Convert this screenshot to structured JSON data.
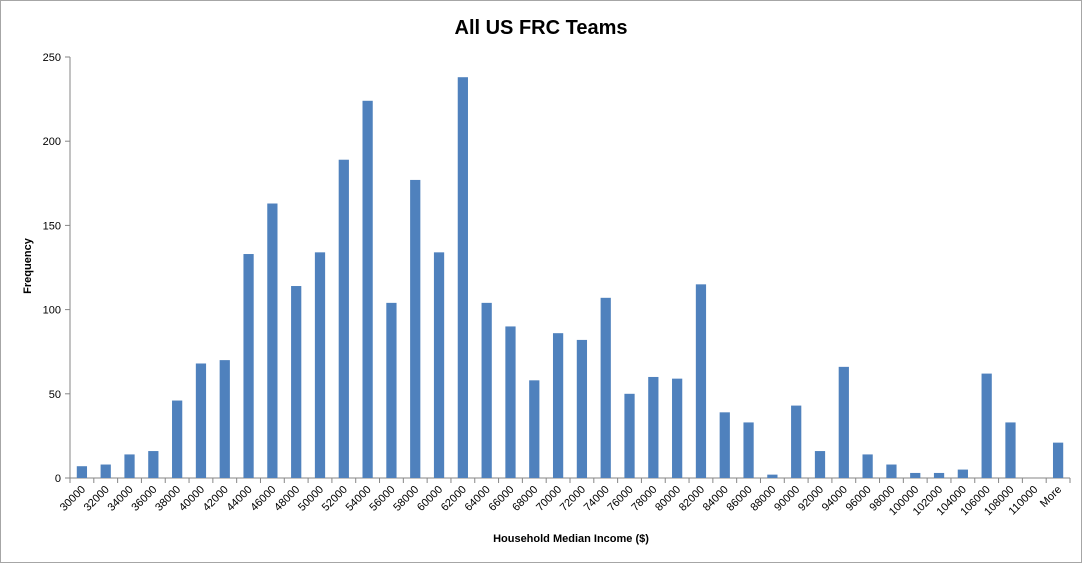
{
  "chart_data": {
    "type": "bar",
    "title": "All US FRC Teams",
    "xlabel": "Household Median Income ($)",
    "ylabel": "Frequency",
    "ylim": [
      0,
      250
    ],
    "yticks": [
      0,
      50,
      100,
      150,
      200,
      250
    ],
    "grid": false,
    "legend": "none",
    "bar_color": "#4f81bd",
    "categories": [
      "30000",
      "32000",
      "34000",
      "36000",
      "38000",
      "40000",
      "42000",
      "44000",
      "46000",
      "48000",
      "50000",
      "52000",
      "54000",
      "56000",
      "58000",
      "60000",
      "62000",
      "64000",
      "66000",
      "68000",
      "70000",
      "72000",
      "74000",
      "76000",
      "78000",
      "80000",
      "82000",
      "84000",
      "86000",
      "88000",
      "90000",
      "92000",
      "94000",
      "96000",
      "98000",
      "100000",
      "102000",
      "104000",
      "106000",
      "108000",
      "110000",
      "More"
    ],
    "values": [
      7,
      8,
      14,
      16,
      46,
      68,
      70,
      133,
      163,
      114,
      134,
      189,
      224,
      104,
      177,
      134,
      238,
      104,
      90,
      58,
      86,
      82,
      107,
      50,
      60,
      59,
      115,
      39,
      33,
      2,
      43,
      16,
      66,
      14,
      8,
      3,
      3,
      5,
      62,
      33,
      0,
      21
    ]
  }
}
